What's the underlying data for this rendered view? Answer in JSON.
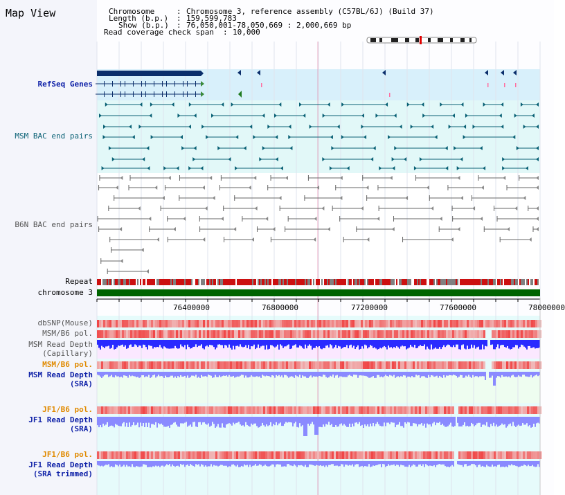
{
  "view": {
    "title": "Map View",
    "info": {
      "chromosome_key": "Chromosome",
      "chromosome_val": "Chromosome 3, reference assembly (C57BL/6J) (Build 37)",
      "length_key": "Length (b.p.)",
      "length_val": "159,599,783",
      "show_key": "Show (b.p.)",
      "show_val": "76,050,001-78,050,669 : 2,000,669 bp",
      "coverage_key": "Read coverage check span",
      "coverage_val": "10,000"
    }
  },
  "tracks": {
    "refseq": "RefSeq Genes",
    "msm_bac": "MSM BAC end pairs",
    "b6n_bac": "B6N BAC end pairs",
    "repeat": "Repeat",
    "chromosome": "chromosome 3",
    "dbsnp": "dbSNP(Mouse)",
    "msm_b6_pol": "MSM/B6 pol.",
    "msm_read_depth_cap_1": "MSM Read Depth",
    "msm_read_depth_cap_2": "(Capillary)",
    "msm_b6_pol_2": "MSM/B6 pol.",
    "msm_read_depth_sra_1": "MSM Read Depth",
    "msm_read_depth_sra_2": "(SRA)",
    "jf1_b6_pol": "JF1/B6 pol.",
    "jf1_read_depth_sra_1": "JF1 Read Depth",
    "jf1_read_depth_sra_2": "(SRA)",
    "jf1_b6_pol_2": "JF1/B6 pol.",
    "jf1_read_depth_trim_1": "JF1 Read Depth",
    "jf1_read_depth_trim_2": "(SRA trimmed)"
  },
  "axis": {
    "ticks": [
      "76400000",
      "76800000",
      "77200000",
      "77600000",
      "78000000"
    ]
  },
  "colors": {
    "refseq_bg": "#d8f0fb",
    "bac_bg": "#e2f8f8",
    "refseq_feature": "#0b2e6b",
    "msm_feature": "#0a6175",
    "b6n_feature": "#666666",
    "chromosome_bar": "#006400",
    "snp_red": "#e02020",
    "depth_blue": "#2a2aff",
    "depth_light": "#8a8aff",
    "highlight_line": "#e07aa0"
  }
}
